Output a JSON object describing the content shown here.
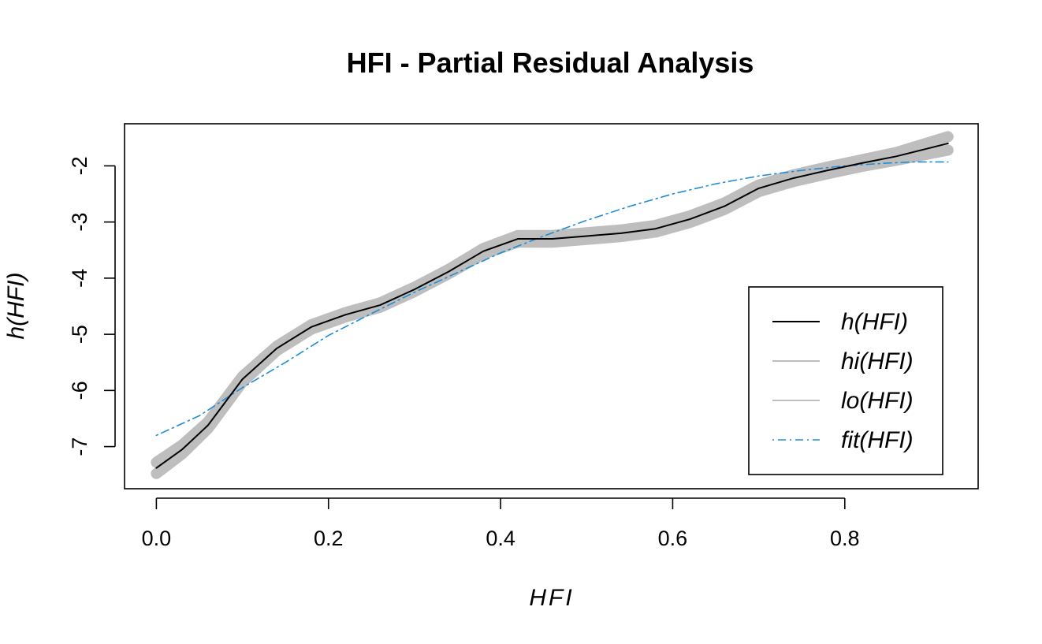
{
  "chart_data": {
    "type": "line",
    "title": "HFI - Partial Residual Analysis",
    "xlabel": "HFI",
    "ylabel": "h(HFI)",
    "xlim": [
      -0.037,
      0.955
    ],
    "ylim": [
      -7.75,
      -1.25
    ],
    "x_ticks": [
      0.0,
      0.2,
      0.4,
      0.6,
      0.8
    ],
    "x_tick_labels": [
      "0.0",
      "0.2",
      "0.4",
      "0.6",
      "0.8"
    ],
    "y_ticks": [
      -7,
      -6,
      -5,
      -4,
      -3,
      -2
    ],
    "y_tick_labels": [
      "-7",
      "-6",
      "-5",
      "-4",
      "-3",
      "-2"
    ],
    "legend_position": "bottom-right",
    "grid": false,
    "series": [
      {
        "name": "h(HFI)",
        "color": "#000000",
        "style": "solid",
        "x": [
          0.0,
          0.03,
          0.06,
          0.1,
          0.14,
          0.18,
          0.22,
          0.26,
          0.3,
          0.34,
          0.38,
          0.42,
          0.46,
          0.5,
          0.54,
          0.58,
          0.62,
          0.66,
          0.7,
          0.74,
          0.78,
          0.82,
          0.86,
          0.92
        ],
        "y": [
          -7.38,
          -7.05,
          -6.62,
          -5.8,
          -5.25,
          -4.87,
          -4.65,
          -4.48,
          -4.2,
          -3.88,
          -3.52,
          -3.3,
          -3.3,
          -3.25,
          -3.2,
          -3.12,
          -2.95,
          -2.72,
          -2.4,
          -2.22,
          -2.08,
          -1.95,
          -1.83,
          -1.6
        ]
      },
      {
        "name": "hi(HFI)",
        "color": "#bebebe",
        "style": "solid",
        "x": [
          0.0,
          0.03,
          0.06,
          0.1,
          0.14,
          0.18,
          0.22,
          0.26,
          0.3,
          0.34,
          0.38,
          0.42,
          0.46,
          0.5,
          0.54,
          0.58,
          0.62,
          0.66,
          0.7,
          0.74,
          0.78,
          0.82,
          0.86,
          0.92
        ],
        "y": [
          -7.28,
          -6.97,
          -6.56,
          -5.75,
          -5.21,
          -4.83,
          -4.61,
          -4.44,
          -4.16,
          -3.84,
          -3.47,
          -3.24,
          -3.24,
          -3.19,
          -3.14,
          -3.06,
          -2.89,
          -2.66,
          -2.34,
          -2.16,
          -2.02,
          -1.89,
          -1.76,
          -1.48
        ]
      },
      {
        "name": "lo(HFI)",
        "color": "#bebebe",
        "style": "solid",
        "x": [
          0.0,
          0.03,
          0.06,
          0.1,
          0.14,
          0.18,
          0.22,
          0.26,
          0.3,
          0.34,
          0.38,
          0.42,
          0.46,
          0.5,
          0.54,
          0.58,
          0.62,
          0.66,
          0.7,
          0.74,
          0.78,
          0.82,
          0.86,
          0.92
        ],
        "y": [
          -7.48,
          -7.13,
          -6.68,
          -5.85,
          -5.29,
          -4.91,
          -4.69,
          -4.52,
          -4.24,
          -3.92,
          -3.57,
          -3.36,
          -3.36,
          -3.31,
          -3.26,
          -3.18,
          -3.01,
          -2.78,
          -2.46,
          -2.28,
          -2.14,
          -2.01,
          -1.9,
          -1.72
        ]
      },
      {
        "name": "fit(HFI)",
        "color": "#1f8dd6",
        "style": "dotdash",
        "x": [
          0.0,
          0.05,
          0.1,
          0.15,
          0.2,
          0.25,
          0.3,
          0.35,
          0.4,
          0.45,
          0.5,
          0.55,
          0.6,
          0.65,
          0.7,
          0.75,
          0.8,
          0.85,
          0.88,
          0.92
        ],
        "y": [
          -6.8,
          -6.45,
          -5.95,
          -5.5,
          -5.02,
          -4.63,
          -4.25,
          -3.9,
          -3.55,
          -3.25,
          -2.97,
          -2.72,
          -2.5,
          -2.32,
          -2.18,
          -2.08,
          -2.0,
          -1.95,
          -1.93,
          -1.93
        ]
      }
    ]
  }
}
